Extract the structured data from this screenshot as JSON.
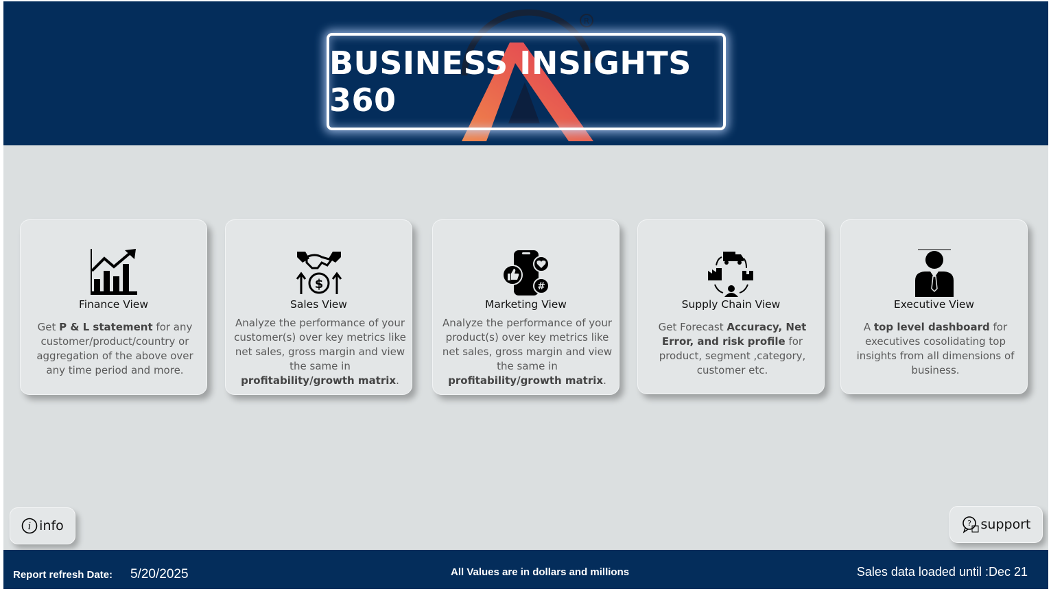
{
  "header": {
    "title": "BUSINESS INSIGHTS 360"
  },
  "cards": [
    {
      "icon": "finance-chart-icon",
      "title": "Finance View",
      "desc": [
        [
          "t",
          "Get "
        ],
        [
          "b",
          "P & L statement"
        ],
        [
          "t",
          " for any customer/product/country or aggregation of the above over any time period and more."
        ]
      ]
    },
    {
      "icon": "handshake-dollar-icon",
      "title": "Sales View",
      "desc": [
        [
          "t",
          "Analyze the performance of your customer(s) over key metrics like net sales, gross margin and view the same in "
        ],
        [
          "b",
          "profitability/growth matrix"
        ],
        [
          "t",
          "."
        ]
      ]
    },
    {
      "icon": "social-media-phone-icon",
      "title": "Marketing View",
      "desc": [
        [
          "t",
          "Analyze the performance of your product(s) over key metrics like net sales, gross margin and view the same in "
        ],
        [
          "b",
          "profitability/growth matrix"
        ],
        [
          "t",
          "."
        ]
      ]
    },
    {
      "icon": "supply-chain-icon",
      "title": "Supply Chain View",
      "desc": [
        [
          "t",
          "Get Forecast "
        ],
        [
          "b",
          "Accuracy, Net Error, and risk profile"
        ],
        [
          "t",
          " for product, segment ,category, customer etc."
        ]
      ]
    },
    {
      "icon": "executive-person-icon",
      "title": "Executive View",
      "desc": [
        [
          "t",
          "A "
        ],
        [
          "b",
          "top level dashboard"
        ],
        [
          "t",
          " for executives cosolidating top insights from all dimensions of business."
        ]
      ]
    }
  ],
  "buttons": {
    "info": "info",
    "support": "support"
  },
  "footer": {
    "refresh_label": "Report refresh Date:",
    "refresh_date": "5/20/2025",
    "values_note": "All Values are in dollars and millions",
    "loaded_until": "Sales data loaded until :Dec 21"
  },
  "colors": {
    "header_bg": "#042d5b",
    "page_bg": "#dbdfe0",
    "card_bg": "#e3e6e7",
    "logo_red": "#e24a4f",
    "logo_orange": "#f0864a"
  }
}
